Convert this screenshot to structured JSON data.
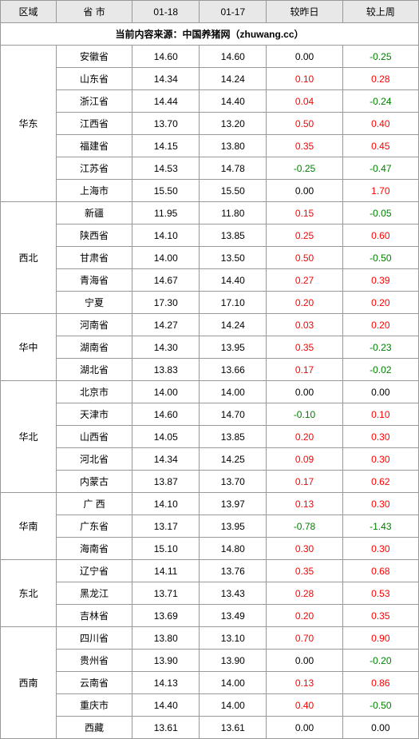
{
  "headers": {
    "region": "区域",
    "province": "省 市",
    "date1": "01-18",
    "date2": "01-17",
    "vs_yesterday": "较昨日",
    "vs_lastweek": "较上周"
  },
  "source": "当前内容来源：中国养猪网（zhuwang.cc）",
  "colors": {
    "positive": "#ff0000",
    "negative": "#008000",
    "neutral": "#000000",
    "header_bg": "#e8e8e8",
    "border": "#999999"
  },
  "regions": [
    {
      "name": "华东",
      "rows": [
        {
          "province": "安徽省",
          "v1": "14.60",
          "v2": "14.60",
          "d1": "0.00",
          "d2": "-0.25"
        },
        {
          "province": "山东省",
          "v1": "14.34",
          "v2": "14.24",
          "d1": "0.10",
          "d2": "0.28"
        },
        {
          "province": "浙江省",
          "v1": "14.44",
          "v2": "14.40",
          "d1": "0.04",
          "d2": "-0.24"
        },
        {
          "province": "江西省",
          "v1": "13.70",
          "v2": "13.20",
          "d1": "0.50",
          "d2": "0.40"
        },
        {
          "province": "福建省",
          "v1": "14.15",
          "v2": "13.80",
          "d1": "0.35",
          "d2": "0.45"
        },
        {
          "province": "江苏省",
          "v1": "14.53",
          "v2": "14.78",
          "d1": "-0.25",
          "d2": "-0.47"
        },
        {
          "province": "上海市",
          "v1": "15.50",
          "v2": "15.50",
          "d1": "0.00",
          "d2": "1.70"
        }
      ]
    },
    {
      "name": "西北",
      "rows": [
        {
          "province": "新疆",
          "v1": "11.95",
          "v2": "11.80",
          "d1": "0.15",
          "d2": "-0.05"
        },
        {
          "province": "陕西省",
          "v1": "14.10",
          "v2": "13.85",
          "d1": "0.25",
          "d2": "0.60"
        },
        {
          "province": "甘肃省",
          "v1": "14.00",
          "v2": "13.50",
          "d1": "0.50",
          "d2": "-0.50"
        },
        {
          "province": "青海省",
          "v1": "14.67",
          "v2": "14.40",
          "d1": "0.27",
          "d2": "0.39"
        },
        {
          "province": "宁夏",
          "v1": "17.30",
          "v2": "17.10",
          "d1": "0.20",
          "d2": "0.20"
        }
      ]
    },
    {
      "name": "华中",
      "rows": [
        {
          "province": "河南省",
          "v1": "14.27",
          "v2": "14.24",
          "d1": "0.03",
          "d2": "0.20"
        },
        {
          "province": "湖南省",
          "v1": "14.30",
          "v2": "13.95",
          "d1": "0.35",
          "d2": "-0.23"
        },
        {
          "province": "湖北省",
          "v1": "13.83",
          "v2": "13.66",
          "d1": "0.17",
          "d2": "-0.02"
        }
      ]
    },
    {
      "name": "华北",
      "rows": [
        {
          "province": "北京市",
          "v1": "14.00",
          "v2": "14.00",
          "d1": "0.00",
          "d2": "0.00"
        },
        {
          "province": "天津市",
          "v1": "14.60",
          "v2": "14.70",
          "d1": "-0.10",
          "d2": "0.10"
        },
        {
          "province": "山西省",
          "v1": "14.05",
          "v2": "13.85",
          "d1": "0.20",
          "d2": "0.30"
        },
        {
          "province": "河北省",
          "v1": "14.34",
          "v2": "14.25",
          "d1": "0.09",
          "d2": "0.30"
        },
        {
          "province": "内蒙古",
          "v1": "13.87",
          "v2": "13.70",
          "d1": "0.17",
          "d2": "0.62"
        }
      ]
    },
    {
      "name": "华南",
      "rows": [
        {
          "province": "广 西",
          "v1": "14.10",
          "v2": "13.97",
          "d1": "0.13",
          "d2": "0.30"
        },
        {
          "province": "广东省",
          "v1": "13.17",
          "v2": "13.95",
          "d1": "-0.78",
          "d2": "-1.43"
        },
        {
          "province": "海南省",
          "v1": "15.10",
          "v2": "14.80",
          "d1": "0.30",
          "d2": "0.30"
        }
      ]
    },
    {
      "name": "东北",
      "rows": [
        {
          "province": "辽宁省",
          "v1": "14.11",
          "v2": "13.76",
          "d1": "0.35",
          "d2": "0.68"
        },
        {
          "province": "黑龙江",
          "v1": "13.71",
          "v2": "13.43",
          "d1": "0.28",
          "d2": "0.53"
        },
        {
          "province": "吉林省",
          "v1": "13.69",
          "v2": "13.49",
          "d1": "0.20",
          "d2": "0.35"
        }
      ]
    },
    {
      "name": "西南",
      "rows": [
        {
          "province": "四川省",
          "v1": "13.80",
          "v2": "13.10",
          "d1": "0.70",
          "d2": "0.90"
        },
        {
          "province": "贵州省",
          "v1": "13.90",
          "v2": "13.90",
          "d1": "0.00",
          "d2": "-0.20"
        },
        {
          "province": "云南省",
          "v1": "14.13",
          "v2": "14.00",
          "d1": "0.13",
          "d2": "0.86"
        },
        {
          "province": "重庆市",
          "v1": "14.40",
          "v2": "14.00",
          "d1": "0.40",
          "d2": "-0.50"
        },
        {
          "province": "西藏",
          "v1": "13.61",
          "v2": "13.61",
          "d1": "0.00",
          "d2": "0.00"
        }
      ]
    }
  ]
}
